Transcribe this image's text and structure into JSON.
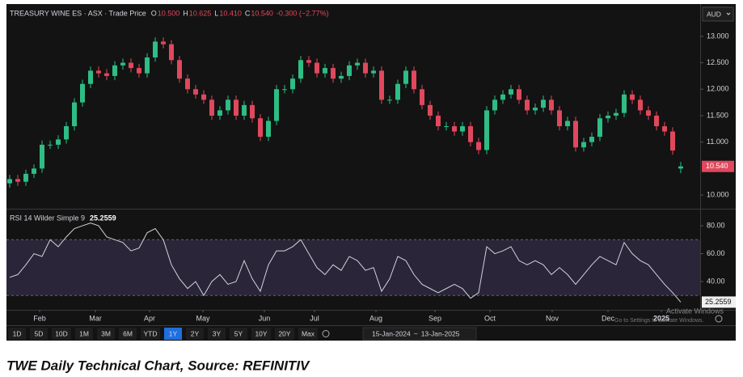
{
  "toolbar": {
    "currency": "AUD",
    "ranges": [
      "1D",
      "5D",
      "10D",
      "1M",
      "3M",
      "6M",
      "YTD",
      "1Y",
      "2Y",
      "3Y",
      "5Y",
      "10Y",
      "20Y",
      "Max"
    ],
    "selected": "1Y",
    "date_from": "15-Jan-2024",
    "date_sep": "~",
    "date_to": "13-Jan-2025"
  },
  "chart_data": [
    {
      "type": "candlestick",
      "title": "TREASURY WINE ES · ASX · Trade Price",
      "legend": [
        {
          "key": "O",
          "value": "10.500"
        },
        {
          "key": "H",
          "value": "10.625"
        },
        {
          "key": "L",
          "value": "10.410"
        },
        {
          "key": "C",
          "value": "10.540"
        }
      ],
      "change": "-0.300 (−2.77%)",
      "up_color": "#2ebd85",
      "down_color": "#e0485d",
      "open": [
        10.22,
        10.3,
        10.25,
        10.4,
        10.5,
        10.95,
        10.95,
        11.05,
        11.3,
        11.75,
        12.1,
        12.35,
        12.3,
        12.25,
        12.45,
        12.5,
        12.4,
        12.3,
        12.6,
        12.9,
        12.85,
        12.55,
        12.2,
        12.0,
        11.9,
        11.8,
        11.5,
        11.6,
        11.8,
        11.5,
        11.7,
        11.45,
        11.1,
        11.4,
        12.0,
        12.0,
        12.2,
        12.55,
        12.5,
        12.3,
        12.4,
        12.2,
        12.25,
        12.45,
        12.5,
        12.3,
        12.35,
        11.8,
        11.8,
        12.1,
        12.35,
        12.0,
        11.7,
        11.5,
        11.3,
        11.3,
        11.2,
        11.3,
        11.0,
        10.85,
        11.6,
        11.8,
        11.9,
        12.0,
        11.8,
        11.6,
        11.65,
        11.8,
        11.6,
        11.3,
        11.4,
        10.9,
        11.0,
        11.1,
        11.45,
        11.5,
        11.55,
        11.9,
        11.8,
        11.6,
        11.5,
        11.3,
        11.2,
        10.5
      ],
      "high": [
        10.38,
        10.38,
        10.48,
        10.58,
        11.03,
        11.03,
        11.13,
        11.38,
        11.83,
        12.18,
        12.43,
        12.43,
        12.38,
        12.53,
        12.58,
        12.58,
        12.48,
        12.68,
        12.98,
        12.98,
        12.93,
        12.63,
        12.28,
        12.08,
        11.98,
        11.88,
        11.68,
        11.88,
        11.88,
        11.78,
        11.78,
        11.53,
        11.48,
        12.08,
        12.08,
        12.28,
        12.63,
        12.63,
        12.58,
        12.48,
        12.48,
        12.33,
        12.53,
        12.58,
        12.58,
        12.43,
        12.43,
        11.88,
        12.18,
        12.43,
        12.43,
        12.08,
        11.78,
        11.58,
        11.38,
        11.38,
        11.38,
        11.38,
        11.08,
        11.68,
        11.88,
        11.98,
        12.08,
        12.08,
        11.88,
        11.73,
        11.88,
        11.88,
        11.68,
        11.48,
        11.48,
        11.08,
        11.18,
        11.53,
        11.58,
        11.63,
        11.98,
        11.98,
        11.88,
        11.68,
        11.58,
        11.38,
        11.28,
        10.625
      ],
      "low": [
        10.14,
        10.17,
        10.17,
        10.32,
        10.42,
        10.87,
        10.87,
        10.97,
        11.22,
        11.67,
        12.02,
        12.22,
        12.17,
        12.17,
        12.37,
        12.32,
        12.22,
        12.22,
        12.52,
        12.77,
        12.47,
        12.12,
        11.92,
        11.82,
        11.72,
        11.42,
        11.42,
        11.52,
        11.42,
        11.42,
        11.37,
        11.02,
        11.02,
        11.32,
        11.92,
        11.92,
        12.12,
        12.42,
        12.22,
        12.22,
        12.12,
        12.12,
        12.17,
        12.37,
        12.22,
        12.22,
        11.72,
        11.72,
        11.72,
        12.02,
        11.92,
        11.62,
        11.42,
        11.22,
        11.22,
        11.12,
        11.12,
        10.92,
        10.77,
        10.77,
        11.52,
        11.72,
        11.82,
        11.72,
        11.52,
        11.52,
        11.57,
        11.52,
        11.22,
        11.22,
        10.82,
        10.82,
        10.92,
        11.02,
        11.37,
        11.42,
        11.47,
        11.72,
        11.52,
        11.42,
        11.22,
        11.12,
        10.76,
        10.41
      ],
      "close": [
        10.3,
        10.25,
        10.4,
        10.5,
        10.95,
        10.95,
        11.05,
        11.3,
        11.75,
        12.1,
        12.35,
        12.3,
        12.25,
        12.45,
        12.5,
        12.4,
        12.3,
        12.6,
        12.9,
        12.85,
        12.55,
        12.2,
        12.0,
        11.9,
        11.8,
        11.5,
        11.6,
        11.8,
        11.5,
        11.7,
        11.45,
        11.1,
        11.4,
        12.0,
        12.0,
        12.2,
        12.55,
        12.5,
        12.3,
        12.4,
        12.2,
        12.25,
        12.45,
        12.5,
        12.3,
        12.35,
        11.8,
        11.8,
        12.1,
        12.35,
        12.0,
        11.7,
        11.5,
        11.3,
        11.3,
        11.2,
        11.3,
        11.0,
        10.85,
        11.6,
        11.8,
        11.9,
        12.0,
        11.8,
        11.6,
        11.65,
        11.8,
        11.6,
        11.3,
        11.4,
        10.9,
        11.0,
        11.1,
        11.45,
        11.5,
        11.55,
        11.9,
        11.8,
        11.6,
        11.5,
        11.3,
        11.2,
        10.84,
        10.54
      ],
      "last_label": {
        "value": 10.54,
        "label": "10.540"
      },
      "ylim": [
        9.74,
        13.61
      ],
      "yticks": [
        {
          "value": 10,
          "label": "10.000"
        },
        {
          "value": 11,
          "label": "11.000"
        },
        {
          "value": 11.5,
          "label": "11.500"
        },
        {
          "value": 12,
          "label": "12.000"
        },
        {
          "value": 12.5,
          "label": "12.500"
        },
        {
          "value": 13,
          "label": "13.000"
        }
      ],
      "xlim": [
        -0.4,
        85.4
      ],
      "xticks": [
        {
          "value": 3.7,
          "label": "Feb"
        },
        {
          "value": 10.6,
          "label": "Mar"
        },
        {
          "value": 17.3,
          "label": "Apr"
        },
        {
          "value": 23.9,
          "label": "May"
        },
        {
          "value": 31.5,
          "label": "Jun"
        },
        {
          "value": 37.7,
          "label": "Jul"
        },
        {
          "value": 45.3,
          "label": "Aug"
        },
        {
          "value": 52.6,
          "label": "Sep"
        },
        {
          "value": 59.4,
          "label": "Oct"
        },
        {
          "value": 67.1,
          "label": "Nov"
        },
        {
          "value": 74.0,
          "label": "Dec"
        },
        {
          "value": 80.6,
          "label": "2025"
        }
      ]
    },
    {
      "type": "line",
      "title": "RSI 14 Wilder Simple 9",
      "color": "#d1d4dc",
      "values": [
        43,
        45,
        52,
        60,
        58,
        70,
        65,
        72,
        78,
        80,
        82,
        80,
        72,
        70,
        68,
        62,
        64,
        75,
        78,
        70,
        52,
        42,
        35,
        40,
        30,
        40,
        45,
        38,
        40,
        55,
        42,
        33,
        52,
        62,
        62,
        65,
        70,
        60,
        50,
        45,
        52,
        48,
        58,
        55,
        48,
        50,
        33,
        42,
        58,
        55,
        45,
        38,
        35,
        32,
        35,
        38,
        35,
        28,
        32,
        65,
        60,
        62,
        65,
        55,
        52,
        55,
        52,
        45,
        50,
        45,
        38,
        45,
        52,
        58,
        55,
        52,
        68,
        60,
        55,
        52,
        45,
        38,
        32,
        25.2559
      ],
      "last_label": {
        "value": 25.2559,
        "label": "25.2559"
      },
      "bands": [
        30,
        70
      ],
      "band_color": "#2a2538",
      "ylim": [
        19.7,
        89.9
      ],
      "yticks": [
        {
          "value": 40,
          "label": "40.00"
        },
        {
          "value": 60,
          "label": "60.00"
        },
        {
          "value": 80,
          "label": "80.00"
        }
      ]
    }
  ],
  "watermark": {
    "line1": "Activate Windows",
    "line2": "Go to Settings to activate Windows."
  },
  "caption": "TWE Daily Technical Chart, Source: REFINITIV"
}
